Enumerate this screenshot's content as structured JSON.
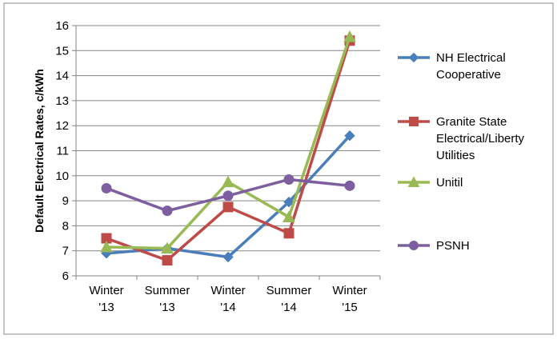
{
  "chart_data": {
    "type": "line",
    "title": "",
    "xlabel": "",
    "ylabel": "Default Electrical Rates, c/kWh",
    "ylim": [
      6,
      16
    ],
    "yticks": [
      6,
      7,
      8,
      9,
      10,
      11,
      12,
      13,
      14,
      15,
      16
    ],
    "grid": true,
    "legend_position": "right",
    "categories": [
      [
        "Winter",
        "'13"
      ],
      [
        "Summer",
        "'13"
      ],
      [
        "Winter",
        "'14"
      ],
      [
        "Summer",
        "'14"
      ],
      [
        "Winter",
        "'15"
      ]
    ],
    "series": [
      {
        "name_lines": [
          "NH Electrical",
          "Cooperative"
        ],
        "color": "#4a7ebb",
        "marker": "diamond",
        "values": [
          6.9,
          7.1,
          6.75,
          8.95,
          11.6
        ]
      },
      {
        "name_lines": [
          "Granite State",
          "Electrical/Liberty",
          "Utilities"
        ],
        "color": "#be4b48",
        "marker": "square",
        "values": [
          7.5,
          6.62,
          8.75,
          7.7,
          15.4
        ]
      },
      {
        "name_lines": [
          "Unitil"
        ],
        "color": "#98b954",
        "marker": "triangle",
        "values": [
          7.15,
          7.1,
          9.75,
          8.35,
          15.55
        ]
      },
      {
        "name_lines": [
          "PSNH"
        ],
        "color": "#7d5fa0",
        "marker": "circle",
        "values": [
          9.5,
          8.6,
          9.2,
          9.85,
          9.6
        ]
      }
    ]
  }
}
